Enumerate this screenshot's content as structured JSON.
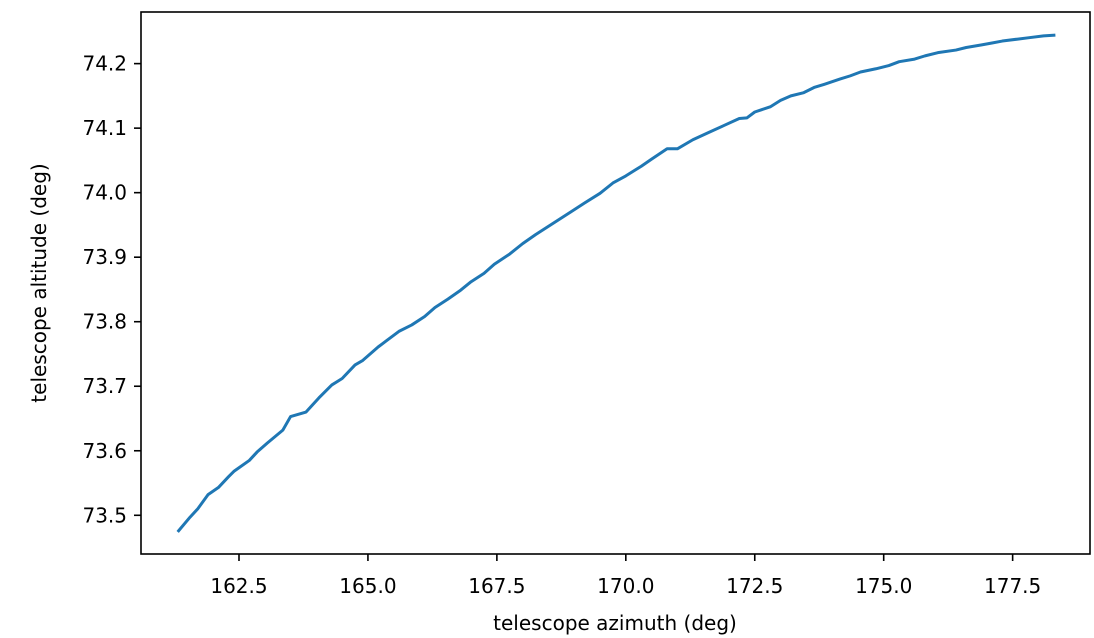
{
  "chart_data": {
    "type": "line",
    "xlabel": "telescope azimuth (deg)",
    "ylabel": "telescope altitude (deg)",
    "xlim": [
      160.6,
      179.0
    ],
    "ylim": [
      73.44,
      74.28
    ],
    "xticks": [
      162.5,
      165.0,
      167.5,
      170.0,
      172.5,
      175.0,
      177.5
    ],
    "xtick_labels": [
      "162.5",
      "165.0",
      "167.5",
      "170.0",
      "172.5",
      "175.0",
      "177.5"
    ],
    "yticks": [
      73.5,
      73.6,
      73.7,
      73.8,
      73.9,
      74.0,
      74.1,
      74.2
    ],
    "ytick_labels": [
      "73.5",
      "73.6",
      "73.7",
      "73.8",
      "73.9",
      "74.0",
      "74.1",
      "74.2"
    ],
    "grid": false,
    "series": [
      {
        "color": "#1f77b4",
        "x": [
          161.33,
          161.55,
          161.7,
          161.9,
          162.1,
          162.3,
          162.4,
          162.7,
          162.85,
          163.05,
          163.35,
          163.5,
          163.8,
          164.05,
          164.3,
          164.5,
          164.75,
          164.9,
          165.2,
          165.35,
          165.6,
          165.85,
          166.1,
          166.3,
          166.55,
          166.8,
          167.0,
          167.25,
          167.45,
          167.75,
          168.0,
          168.25,
          168.6,
          168.95,
          169.2,
          169.5,
          169.75,
          170.0,
          170.3,
          170.5,
          170.8,
          171.0,
          171.3,
          171.6,
          171.9,
          172.2,
          172.35,
          172.5,
          172.8,
          173.0,
          173.2,
          173.45,
          173.65,
          173.85,
          174.15,
          174.35,
          174.55,
          174.85,
          175.1,
          175.3,
          175.6,
          175.8,
          176.05,
          176.4,
          176.6,
          176.9,
          177.1,
          177.3,
          177.6,
          177.8,
          178.1,
          178.3
        ],
        "y": [
          73.476,
          73.497,
          73.51,
          73.532,
          73.543,
          73.56,
          73.568,
          73.585,
          73.598,
          73.612,
          73.632,
          73.653,
          73.66,
          73.682,
          73.702,
          73.712,
          73.733,
          73.74,
          73.761,
          73.77,
          73.785,
          73.795,
          73.808,
          73.822,
          73.835,
          73.849,
          73.862,
          73.875,
          73.889,
          73.905,
          73.921,
          73.935,
          73.953,
          73.971,
          73.984,
          73.999,
          74.015,
          74.026,
          74.041,
          74.052,
          74.068,
          74.068,
          74.082,
          74.093,
          74.104,
          74.115,
          74.116,
          74.125,
          74.133,
          74.143,
          74.15,
          74.155,
          74.163,
          74.168,
          74.176,
          74.181,
          74.187,
          74.192,
          74.197,
          74.203,
          74.207,
          74.212,
          74.217,
          74.221,
          74.225,
          74.229,
          74.232,
          74.235,
          74.238,
          74.24,
          74.243,
          74.244
        ]
      }
    ]
  }
}
